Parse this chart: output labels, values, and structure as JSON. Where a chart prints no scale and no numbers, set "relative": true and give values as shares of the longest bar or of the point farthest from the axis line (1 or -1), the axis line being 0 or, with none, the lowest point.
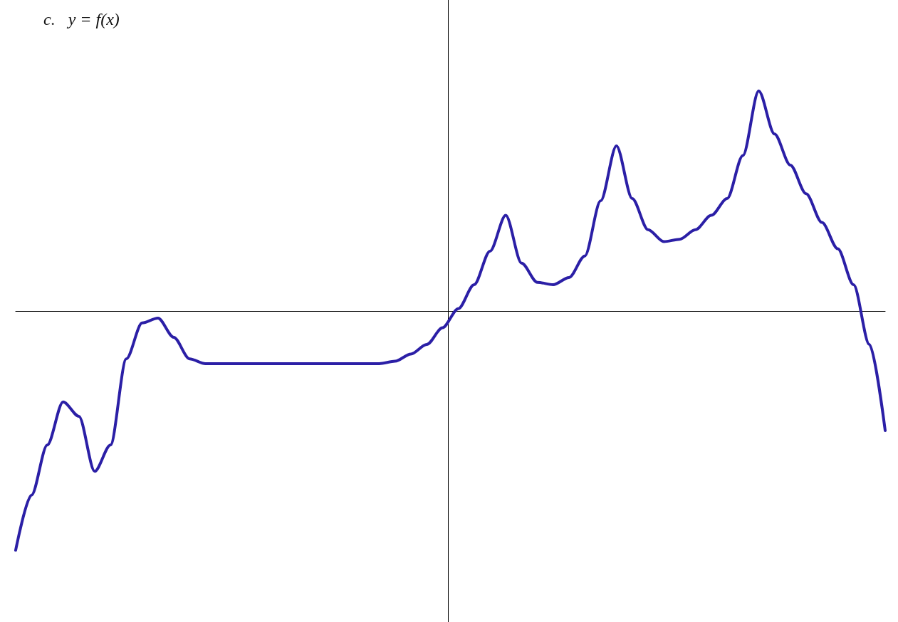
{
  "chart_data": {
    "type": "line",
    "title": "c.   y = f(x)",
    "relative": true,
    "color": "#2b1fa6",
    "categories": [
      null,
      null,
      null,
      null,
      null,
      null,
      null,
      null,
      null,
      null,
      null,
      null,
      null,
      null,
      null,
      null,
      null,
      null,
      null,
      null,
      null,
      null,
      null,
      null,
      null,
      null,
      null,
      null,
      null,
      null,
      null,
      null,
      null,
      null,
      null,
      null,
      null,
      null,
      null,
      null,
      null,
      null,
      null,
      null,
      null,
      null,
      null,
      null,
      null,
      null,
      null,
      null,
      null,
      null,
      null,
      null
    ],
    "values": [
      -1,
      -0.77,
      -0.56,
      -0.38,
      -0.44,
      -0.67,
      -0.56,
      -0.2,
      -0.05,
      -0.03,
      -0.11,
      -0.2,
      -0.22,
      -0.22,
      -0.22,
      -0.22,
      -0.22,
      -0.22,
      -0.22,
      -0.22,
      -0.22,
      -0.22,
      -0.22,
      -0.22,
      -0.21,
      -0.18,
      -0.14,
      -0.07,
      0.01,
      0.11,
      0.25,
      0.4,
      0.2,
      0.12,
      0.11,
      0.14,
      0.23,
      0.46,
      0.69,
      0.47,
      0.34,
      0.29,
      0.3,
      0.34,
      0.4,
      0.47,
      0.65,
      0.92,
      0.74,
      0.61,
      0.49,
      0.37,
      0.26,
      0.11,
      -0.14,
      -0.5
    ]
  }
}
